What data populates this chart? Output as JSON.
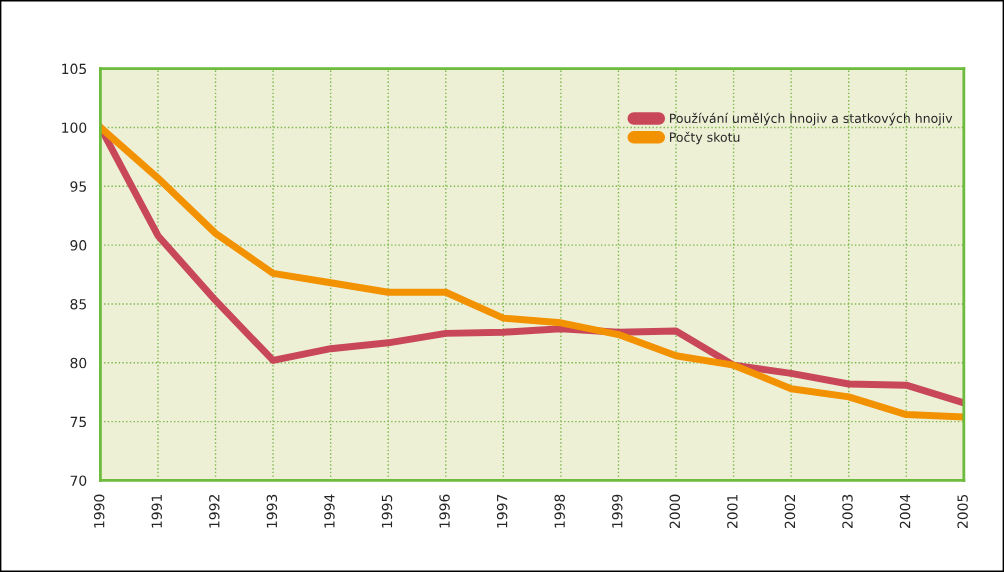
{
  "chart_data": {
    "type": "line",
    "x": [
      1990,
      1991,
      1992,
      1993,
      1994,
      1995,
      1996,
      1997,
      1998,
      1999,
      2000,
      2001,
      2002,
      2003,
      2004,
      2005
    ],
    "series": [
      {
        "name": "Používání umělých hnojiv a statkových hnojiv",
        "color": "#c8485a",
        "values": [
          100,
          90.8,
          85.3,
          80.2,
          81.2,
          81.7,
          82.5,
          82.6,
          82.9,
          82.6,
          82.7,
          79.8,
          79.1,
          78.2,
          78.1,
          76.6
        ]
      },
      {
        "name": "Počty skotu",
        "color": "#f39200",
        "values": [
          100,
          95.7,
          91.0,
          87.6,
          86.8,
          86.0,
          86.0,
          83.8,
          83.4,
          82.4,
          80.6,
          79.8,
          77.8,
          77.1,
          75.6,
          75.4
        ]
      }
    ],
    "xlim": [
      1990,
      2005
    ],
    "xticks": [
      1990,
      1991,
      1992,
      1993,
      1994,
      1995,
      1996,
      1997,
      1998,
      1999,
      2000,
      2001,
      2002,
      2003,
      2004,
      2005
    ],
    "ylim": [
      70,
      105
    ],
    "yticks": [
      70,
      75,
      80,
      85,
      90,
      95,
      100,
      105
    ],
    "grid": true,
    "legend": "top right",
    "marker": "none",
    "line_style": "solid"
  }
}
